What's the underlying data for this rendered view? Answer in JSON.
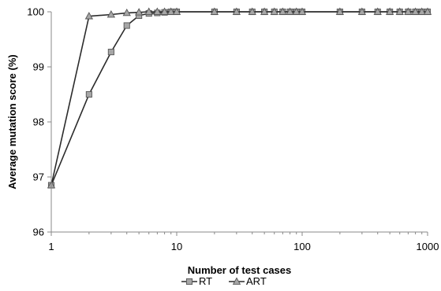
{
  "chart_data": {
    "type": "line",
    "title": "",
    "xlabel": "Number of test cases",
    "ylabel": "Average mutation score (%)",
    "xscale": "log",
    "xlim": [
      1,
      1000
    ],
    "ylim": [
      96,
      100
    ],
    "xticks": [
      1,
      10,
      100,
      1000
    ],
    "xtick_labels": [
      "1",
      "10",
      "100",
      "1000"
    ],
    "yticks": [
      96,
      97,
      98,
      99,
      100
    ],
    "ytick_labels": [
      "96",
      "97",
      "98",
      "99",
      "100"
    ],
    "grid": false,
    "legend_position": "bottom",
    "x": [
      1,
      2,
      3,
      4,
      5,
      6,
      7,
      8,
      9,
      10,
      20,
      30,
      40,
      50,
      60,
      70,
      80,
      90,
      100,
      200,
      300,
      400,
      500,
      600,
      700,
      800,
      900,
      1000
    ],
    "series": [
      {
        "name": "RT",
        "marker": "square",
        "color": "#2b2b2b",
        "marker_fill": "#a6a6a6",
        "values": [
          96.85,
          98.5,
          99.27,
          99.75,
          99.93,
          99.97,
          99.98,
          99.99,
          100,
          100,
          100,
          100,
          100,
          100,
          100,
          100,
          100,
          100,
          100,
          100,
          100,
          100,
          100,
          100,
          100,
          100,
          100,
          100
        ]
      },
      {
        "name": "ART",
        "marker": "triangle",
        "color": "#2b2b2b",
        "marker_fill": "#a6a6a6",
        "values": [
          96.85,
          99.92,
          99.95,
          99.98,
          99.99,
          100,
          100,
          100,
          100,
          100,
          100,
          100,
          100,
          100,
          100,
          100,
          100,
          100,
          100,
          100,
          100,
          100,
          100,
          100,
          100,
          100,
          100,
          100
        ]
      }
    ]
  }
}
